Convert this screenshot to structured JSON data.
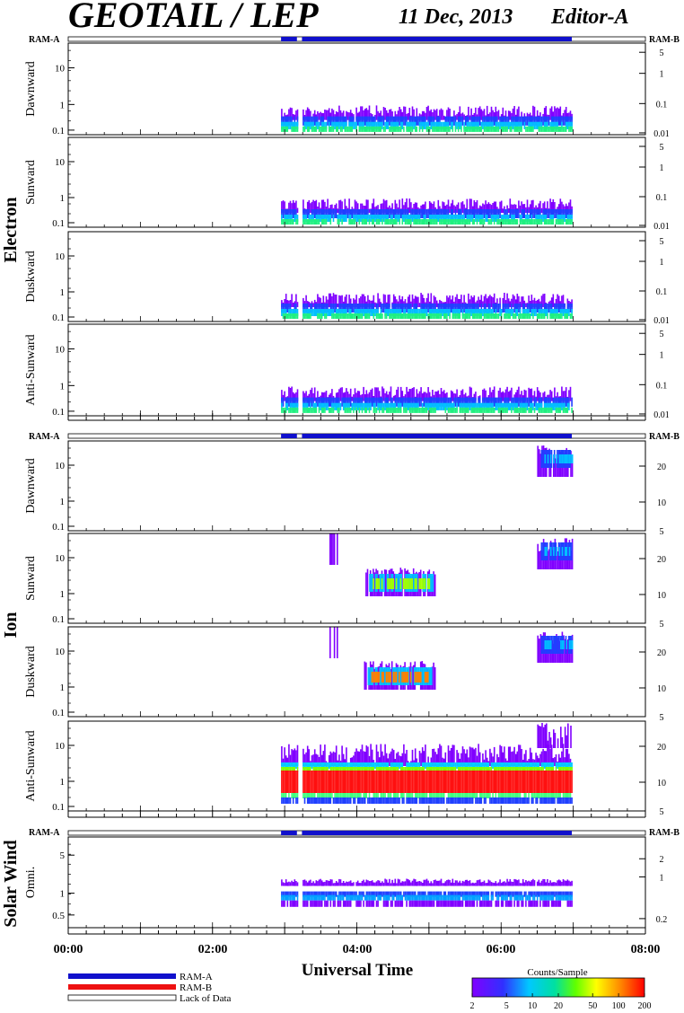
{
  "header": {
    "title": "GEOTAIL / LEP",
    "date": "11 Dec, 2013",
    "editor": "Editor-A"
  },
  "ram_labels": {
    "left": "RAM-A",
    "right": "RAM-B"
  },
  "groups": {
    "electron": "Electron",
    "ion": "Ion",
    "solar_wind": "Solar Wind"
  },
  "legend": {
    "ram_a": "RAM-A",
    "ram_b": "RAM-B",
    "lack": "Lack of Data",
    "colorbar_title": "Counts/Sample",
    "colorbar_ticks": [
      "2",
      "5",
      "10",
      "20",
      "50",
      "100",
      "200"
    ],
    "colors": {
      "ram_a": "#1010cc",
      "ram_b": "#ee1111"
    }
  },
  "chart_data": {
    "type": "heatmap",
    "xlabel": "Universal Time",
    "x_ticks": [
      "00:00",
      "02:00",
      "04:00",
      "06:00",
      "08:00"
    ],
    "xlim_hours": [
      0,
      8
    ],
    "data_interval_hours": [
      2.95,
      6.98
    ],
    "data_gap_hours": [
      3.17,
      3.24
    ],
    "colorbar_range": [
      2,
      200
    ],
    "colorbar_scale": "log",
    "panels": [
      {
        "group": "electron",
        "label": "Dawnward",
        "left_ticks": [
          "10",
          "1",
          "0.1"
        ],
        "right_ticks": [
          "5",
          "1",
          "0.1",
          "0.01"
        ]
      },
      {
        "group": "electron",
        "label": "Sunward",
        "left_ticks": [
          "10",
          "1",
          "0.1"
        ],
        "right_ticks": [
          "5",
          "1",
          "0.1",
          "0.01"
        ]
      },
      {
        "group": "electron",
        "label": "Duskward",
        "left_ticks": [
          "10",
          "1",
          "0.1"
        ],
        "right_ticks": [
          "5",
          "1",
          "0.1",
          "0.01"
        ]
      },
      {
        "group": "electron",
        "label": "Anti-Sunward",
        "left_ticks": [
          "10",
          "1",
          "0.1"
        ],
        "right_ticks": [
          "5",
          "1",
          "0.1",
          "0.01"
        ]
      },
      {
        "group": "ion",
        "label": "Dawnward",
        "left_ticks": [
          "10",
          "1",
          "0.1"
        ],
        "right_ticks": [
          "20",
          "10",
          "5"
        ]
      },
      {
        "group": "ion",
        "label": "Sunward",
        "left_ticks": [
          "10",
          "1",
          "0.1"
        ],
        "right_ticks": [
          "20",
          "10",
          "5"
        ]
      },
      {
        "group": "ion",
        "label": "Duskward",
        "left_ticks": [
          "10",
          "1",
          "0.1"
        ],
        "right_ticks": [
          "20",
          "10",
          "5"
        ]
      },
      {
        "group": "ion",
        "label": "Anti-Sunward",
        "left_ticks": [
          "10",
          "1",
          "0.1"
        ],
        "right_ticks": [
          "20",
          "10",
          "5"
        ]
      },
      {
        "group": "solar_wind",
        "label": "Omni.",
        "left_ticks": [
          "5",
          "1",
          "0.5"
        ],
        "right_ticks": [
          "2",
          "1",
          "0.2"
        ]
      }
    ]
  }
}
